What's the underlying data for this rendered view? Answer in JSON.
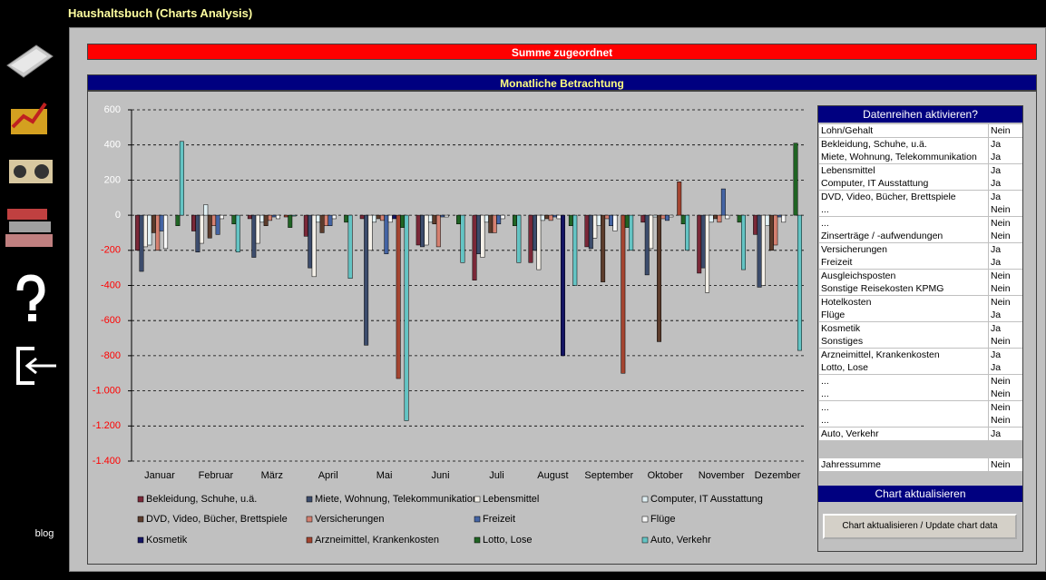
{
  "header": {
    "title": "Haushaltsbuch (Charts Analysis)",
    "sidebar_link": "blog"
  },
  "banners": {
    "top": "Summe zugeordnet",
    "chart": "Monatliche Betrachtung"
  },
  "chart_data": {
    "type": "bar",
    "grid": true,
    "categories": [
      "Januar",
      "Februar",
      "März",
      "April",
      "Mai",
      "Juni",
      "Juli",
      "August",
      "September",
      "Oktober",
      "November",
      "Dezember"
    ],
    "ylim": [
      -1400,
      600
    ],
    "yticks": [
      {
        "value": -1400,
        "label": "-1.400"
      },
      {
        "value": -1200,
        "label": "-1.200"
      },
      {
        "value": -1000,
        "label": "-1.000"
      },
      -800,
      -600,
      -400,
      -200,
      0,
      200,
      400,
      600
    ],
    "series": [
      {
        "name": "Bekleidung, Schuhe, u.ä.",
        "color": "#7a2838",
        "values": [
          -200,
          -90,
          -20,
          -120,
          -20,
          -170,
          -370,
          -270,
          -180,
          -40,
          -330,
          -110
        ]
      },
      {
        "name": "Miete, Wohnung, Telekommunikation",
        "color": "#3c4c6c",
        "values": [
          -320,
          -210,
          -240,
          -300,
          -740,
          -180,
          -220,
          -200,
          -190,
          -340,
          -300,
          -410
        ]
      },
      {
        "name": "Lebensmittel",
        "color": "#f4f0e8",
        "values": [
          -180,
          -160,
          -160,
          -350,
          -200,
          -170,
          -240,
          -310,
          -130,
          -190,
          -440,
          -400
        ]
      },
      {
        "name": "Computer, IT Ausstattung",
        "color": "#e0f0f4",
        "values": [
          -170,
          60,
          -40,
          -40,
          -40,
          -40,
          -40,
          -30,
          -60,
          -10,
          -40,
          -60
        ]
      },
      {
        "name": "DVD, Video, Bücher, Brettspiele",
        "color": "#5c3c2c",
        "values": [
          -100,
          -130,
          -60,
          -100,
          -20,
          -50,
          -100,
          -20,
          -380,
          -720,
          -20,
          -200
        ]
      },
      {
        "name": "Versicherungen",
        "color": "#d48070",
        "values": [
          -200,
          -60,
          -30,
          -60,
          -30,
          -180,
          -100,
          -30,
          -20,
          -20,
          -40,
          -170
        ]
      },
      {
        "name": "Freizeit",
        "color": "#4464a4",
        "values": [
          -90,
          -110,
          -10,
          -60,
          -220,
          -10,
          -50,
          -10,
          -60,
          -30,
          150,
          -10
        ]
      },
      {
        "name": "Flüge",
        "color": "#f8f8f8",
        "values": [
          -190,
          -20,
          -20,
          -20,
          -40,
          -10,
          -20,
          -20,
          -90,
          -10,
          -20,
          -40
        ]
      },
      {
        "name": "Kosmetik",
        "color": "#141464",
        "values": [
          0,
          0,
          0,
          0,
          -20,
          0,
          0,
          -800,
          0,
          0,
          0,
          0
        ]
      },
      {
        "name": "Arzneimittel, Krankenkosten",
        "color": "#a44430",
        "values": [
          0,
          0,
          -10,
          0,
          -930,
          0,
          0,
          0,
          -900,
          190,
          0,
          0
        ]
      },
      {
        "name": "Lotto, Lose",
        "color": "#206424",
        "values": [
          -60,
          -50,
          -70,
          -40,
          -70,
          -50,
          -60,
          -60,
          -70,
          -50,
          -40,
          410
        ]
      },
      {
        "name": "Auto, Verkehr",
        "color": "#64c4c4",
        "values": [
          420,
          -210,
          -5,
          -360,
          -1170,
          -270,
          -270,
          -400,
          -200,
          -200,
          -310,
          -770
        ]
      }
    ]
  },
  "series_panel": {
    "title": "Datenreihen aktivieren?",
    "rows": [
      {
        "label": "Lohn/Gehalt",
        "value": "Nein"
      },
      {
        "label": "Bekleidung, Schuhe, u.ä.",
        "value": "Ja"
      },
      {
        "label": "Miete, Wohnung, Telekommunikation",
        "value": "Ja"
      },
      {
        "label": "Lebensmittel",
        "value": "Ja"
      },
      {
        "label": "Computer, IT Ausstattung",
        "value": "Ja"
      },
      {
        "label": "DVD, Video, Bücher, Brettspiele",
        "value": "Ja"
      },
      {
        "label": "...",
        "value": "Nein"
      },
      {
        "label": "...",
        "value": "Nein"
      },
      {
        "label": "Zinserträge / -aufwendungen",
        "value": "Nein"
      },
      {
        "label": "Versicherungen",
        "value": "Ja"
      },
      {
        "label": "Freizeit",
        "value": "Ja"
      },
      {
        "label": "Ausgleichsposten",
        "value": "Nein"
      },
      {
        "label": "Sonstige Reisekosten KPMG",
        "value": "Nein"
      },
      {
        "label": "Hotelkosten",
        "value": "Nein"
      },
      {
        "label": "Flüge",
        "value": "Ja"
      },
      {
        "label": "Kosmetik",
        "value": "Ja"
      },
      {
        "label": "Sonstiges",
        "value": "Nein"
      },
      {
        "label": "Arzneimittel, Krankenkosten",
        "value": "Ja"
      },
      {
        "label": "Lotto, Lose",
        "value": "Ja"
      },
      {
        "label": "...",
        "value": "Nein"
      },
      {
        "label": "...",
        "value": "Nein"
      },
      {
        "label": "...",
        "value": "Nein"
      },
      {
        "label": "...",
        "value": "Nein"
      },
      {
        "label": "Auto, Verkehr",
        "value": "Ja"
      }
    ],
    "total": {
      "label": "Jahressumme",
      "value": "Nein"
    }
  },
  "update": {
    "title": "Chart aktualisieren",
    "button": "Chart aktualisieren / Update chart data"
  }
}
